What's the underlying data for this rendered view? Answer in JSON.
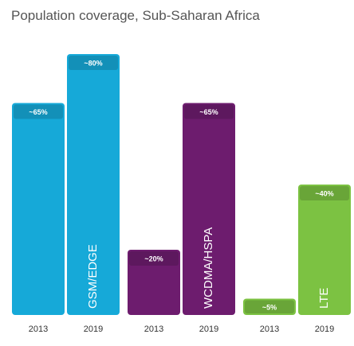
{
  "chart_data": {
    "type": "bar",
    "title": "Population coverage, Sub-Saharan Africa",
    "ylim": [
      0,
      100
    ],
    "grid": false,
    "legend": "none",
    "groups": [
      {
        "name": "GSM/EDGE",
        "color": "#16a9d8",
        "bars": [
          {
            "x": "2013",
            "value": 65,
            "label": "~65%"
          },
          {
            "x": "2019",
            "value": 80,
            "label": "~80%"
          }
        ]
      },
      {
        "name": "WCDMA/HSPA",
        "color": "#6d1c6e",
        "bars": [
          {
            "x": "2013",
            "value": 20,
            "label": "~20%"
          },
          {
            "x": "2019",
            "value": 65,
            "label": "~65%"
          }
        ]
      },
      {
        "name": "LTE",
        "color": "#7cc242",
        "bars": [
          {
            "x": "2013",
            "value": 5,
            "label": "~5%"
          },
          {
            "x": "2019",
            "value": 40,
            "label": "~40%"
          }
        ]
      }
    ]
  }
}
